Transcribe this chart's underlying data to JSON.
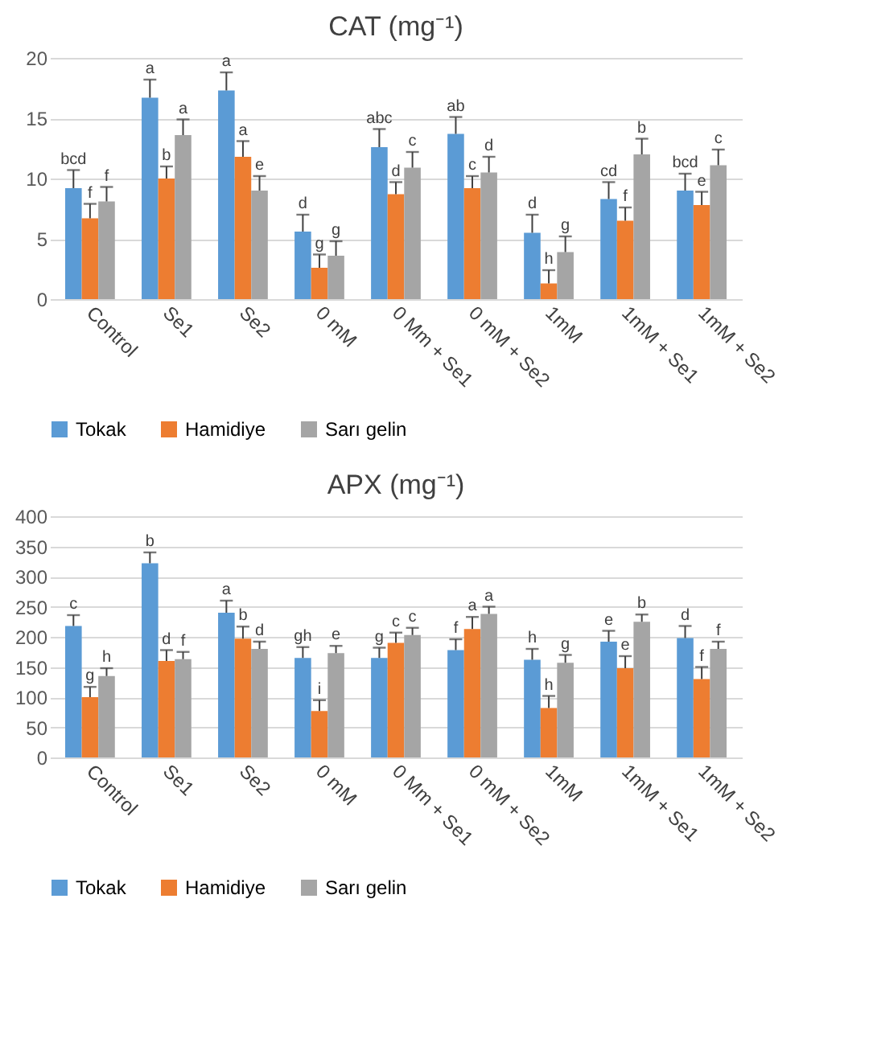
{
  "chart_data": [
    {
      "type": "bar",
      "title": "CAT (mg⁻¹)",
      "categories": [
        "Control",
        "Se1",
        "Se2",
        "0 mM",
        "0 Mm + Se1",
        "0 mM + Se2",
        "1mM",
        "1mM + Se1",
        "1mM + Se2"
      ],
      "series": [
        {
          "name": "Tokak",
          "color": "#5b9bd5",
          "values": [
            9.2,
            16.7,
            17.3,
            5.6,
            12.6,
            13.7,
            5.5,
            8.3,
            9.0
          ],
          "errors": [
            1.5,
            1.5,
            1.5,
            1.4,
            1.5,
            1.4,
            1.5,
            1.4,
            1.4
          ]
        },
        {
          "name": "Hamidiye",
          "color": "#ed7d31",
          "values": [
            6.7,
            10.0,
            11.8,
            2.6,
            8.7,
            9.2,
            1.3,
            6.5,
            7.8
          ],
          "errors": [
            1.2,
            1.0,
            1.3,
            1.1,
            1.0,
            1.0,
            1.1,
            1.1,
            1.1
          ]
        },
        {
          "name": "Sarı gelin",
          "color": "#a5a5a5",
          "values": [
            8.1,
            13.6,
            9.0,
            3.6,
            10.9,
            10.5,
            3.9,
            12.0,
            11.1
          ],
          "errors": [
            1.2,
            1.3,
            1.2,
            1.2,
            1.3,
            1.3,
            1.3,
            1.3,
            1.3
          ]
        }
      ],
      "ylim": [
        0,
        20
      ],
      "yticks": [
        0,
        5,
        10,
        15,
        20
      ],
      "grid": "y",
      "legend": "bottom",
      "annotations": [
        "bcd",
        "f",
        "f",
        "a",
        "b",
        "a",
        "a",
        "a",
        "e",
        "d",
        "g",
        "g",
        "abc",
        "d",
        "c",
        "ab",
        "c",
        "d",
        "d",
        "h",
        "g",
        "cd",
        "f",
        "b",
        "bcd",
        "e",
        "c"
      ]
    },
    {
      "type": "bar",
      "title": "APX (mg⁻¹)",
      "categories": [
        "Control",
        "Se1",
        "Se2",
        "0 mM",
        "0 Mm + Se1",
        "0 mM + Se2",
        "1mM",
        "1mM + Se1",
        "1mM + Se2"
      ],
      "series": [
        {
          "name": "Tokak",
          "color": "#5b9bd5",
          "values": [
            218,
            322,
            240,
            165,
            165,
            178,
            162,
            192,
            198
          ],
          "errors": [
            18,
            18,
            20,
            18,
            17,
            18,
            18,
            18,
            20
          ]
        },
        {
          "name": "Hamidiye",
          "color": "#ed7d31",
          "values": [
            100,
            160,
            197,
            77,
            190,
            213,
            82,
            148,
            130
          ],
          "errors": [
            17,
            18,
            20,
            18,
            17,
            20,
            20,
            20,
            20
          ]
        },
        {
          "name": "Sarı gelin",
          "color": "#a5a5a5",
          "values": [
            135,
            163,
            180,
            173,
            203,
            238,
            157,
            225,
            180
          ],
          "errors": [
            13,
            12,
            12,
            12,
            12,
            12,
            13,
            12,
            12
          ]
        }
      ],
      "ylim": [
        0,
        400
      ],
      "yticks": [
        0,
        50,
        100,
        150,
        200,
        250,
        300,
        350,
        400
      ],
      "grid": "y",
      "legend": "bottom",
      "annotations": [
        "c",
        "g",
        "h",
        "b",
        "d",
        "f",
        "a",
        "b",
        "d",
        "gh",
        "i",
        "e",
        "g",
        "c",
        "c",
        "f",
        "a",
        "a",
        "h",
        "h",
        "g",
        "e",
        "e",
        "b",
        "d",
        "f",
        "f"
      ]
    }
  ]
}
